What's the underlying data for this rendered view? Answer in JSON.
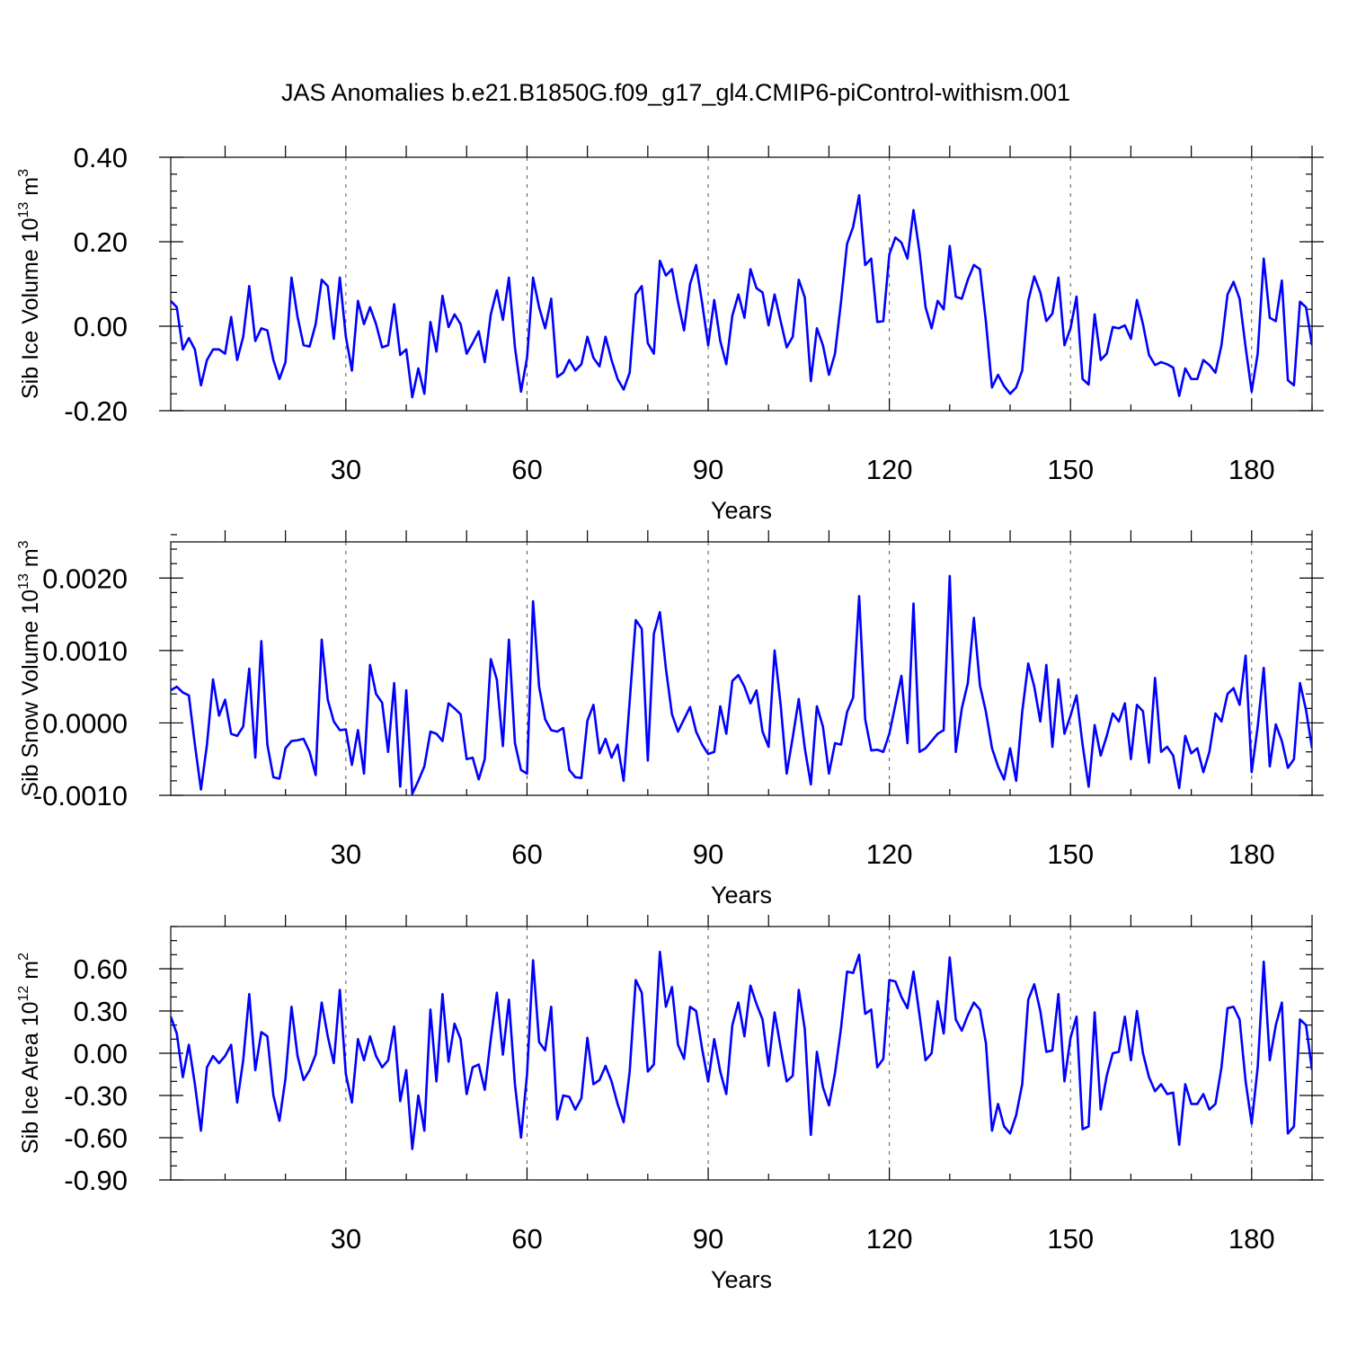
{
  "title": "JAS Anomalies b.e21.B1850G.f09_g17_gl4.CMIP6-piControl-withism.001",
  "colors": {
    "line": "#0000ff",
    "axis": "#000000",
    "grid": "#555555",
    "background": "#ffffff"
  },
  "chart_data": [
    {
      "type": "line",
      "ylabel": "Sib Ice Volume 10",
      "ylabel_exp": "13",
      "ylabel_unit": " m",
      "ylabel_unit_exp": "3",
      "xlabel": "Years",
      "xlim": [
        1,
        190
      ],
      "ylim": [
        -0.2,
        0.4
      ],
      "yticks": [
        -0.2,
        0.0,
        0.2,
        0.4
      ],
      "ytick_labels": [
        "-0.20",
        "0.00",
        "0.20",
        "0.40"
      ],
      "yminor": 0.04,
      "xticks": [
        30,
        60,
        90,
        120,
        150,
        180
      ],
      "xtick_labels": [
        "30",
        "60",
        "90",
        "120",
        "150",
        "180"
      ],
      "grid_x": [
        30,
        60,
        90,
        120,
        150,
        180
      ],
      "series": [
        {
          "name": "Sib Ice Volume",
          "x_start": 1,
          "values": [
            0.06,
            0.045,
            -0.055,
            -0.028,
            -0.055,
            -0.14,
            -0.08,
            -0.055,
            -0.055,
            -0.065,
            0.022,
            -0.08,
            -0.025,
            0.095,
            -0.035,
            -0.005,
            -0.01,
            -0.08,
            -0.125,
            -0.085,
            0.115,
            0.022,
            -0.045,
            -0.048,
            0.005,
            0.11,
            0.095,
            -0.03,
            0.115,
            -0.025,
            -0.105,
            0.06,
            0.005,
            0.045,
            0.005,
            -0.05,
            -0.045,
            0.052,
            -0.068,
            -0.055,
            -0.168,
            -0.1,
            -0.16,
            0.01,
            -0.06,
            0.072,
            -0.002,
            0.028,
            0.005,
            -0.065,
            -0.04,
            -0.012,
            -0.085,
            0.028,
            0.085,
            0.015,
            0.115,
            -0.05,
            -0.155,
            -0.075,
            0.115,
            0.045,
            -0.005,
            0.065,
            -0.12,
            -0.11,
            -0.08,
            -0.105,
            -0.09,
            -0.025,
            -0.075,
            -0.095,
            -0.025,
            -0.08,
            -0.125,
            -0.15,
            -0.11,
            0.075,
            0.095,
            -0.04,
            -0.065,
            0.155,
            0.12,
            0.135,
            0.058,
            -0.01,
            0.1,
            0.145,
            0.055,
            -0.045,
            0.062,
            -0.035,
            -0.09,
            0.025,
            0.075,
            0.02,
            0.135,
            0.09,
            0.08,
            0.002,
            0.075,
            0.012,
            -0.05,
            -0.025,
            0.11,
            0.068,
            -0.13,
            -0.005,
            -0.045,
            -0.115,
            -0.065,
            0.058,
            0.195,
            0.235,
            0.31,
            0.145,
            0.16,
            0.01,
            0.012,
            0.17,
            0.21,
            0.198,
            0.16,
            0.275,
            0.175,
            0.045,
            -0.005,
            0.06,
            0.04,
            0.19,
            0.07,
            0.065,
            0.11,
            0.145,
            0.135,
            0.01,
            -0.145,
            -0.115,
            -0.142,
            -0.16,
            -0.145,
            -0.105,
            0.06,
            0.118,
            0.08,
            0.012,
            0.03,
            0.115,
            -0.045,
            -0.005,
            0.07,
            -0.125,
            -0.138,
            0.028,
            -0.08,
            -0.065,
            -0.002,
            -0.005,
            0.002,
            -0.03,
            0.062,
            0.005,
            -0.068,
            -0.092,
            -0.085,
            -0.09,
            -0.098,
            -0.165,
            -0.1,
            -0.125,
            -0.125,
            -0.08,
            -0.092,
            -0.11,
            -0.045,
            0.075,
            0.105,
            0.065,
            -0.05,
            -0.155,
            -0.065,
            0.16,
            0.02,
            0.012,
            0.108,
            -0.128,
            -0.14,
            0.058,
            0.045,
            -0.045
          ]
        }
      ]
    },
    {
      "type": "line",
      "ylabel": "Sib Snow Volume 10",
      "ylabel_exp": "13",
      "ylabel_unit": " m",
      "ylabel_unit_exp": "3",
      "xlabel": "Years",
      "xlim": [
        1,
        190
      ],
      "ylim": [
        -0.001,
        0.0025
      ],
      "yticks": [
        -0.001,
        0.0,
        0.001,
        0.002
      ],
      "ytick_labels": [
        "-0.0010",
        "0.0000",
        "0.0010",
        "0.0020"
      ],
      "yminor": 0.0002,
      "xticks": [
        30,
        60,
        90,
        120,
        150,
        180
      ],
      "xtick_labels": [
        "30",
        "60",
        "90",
        "120",
        "150",
        "180"
      ],
      "grid_x": [
        30,
        60,
        90,
        120,
        150,
        180
      ],
      "series": [
        {
          "name": "Sib Snow Volume",
          "x_start": 1,
          "values": [
            0.00045,
            0.0005,
            0.00042,
            0.00038,
            -0.0003,
            -0.00092,
            -0.0003,
            0.0006,
            0.0001,
            0.00032,
            -0.00015,
            -0.00018,
            -5e-05,
            0.00075,
            -0.00048,
            0.00113,
            -0.0003,
            -0.00075,
            -0.00077,
            -0.00035,
            -0.00025,
            -0.00024,
            -0.00022,
            -0.0004,
            -0.00072,
            0.00115,
            0.00032,
            2e-05,
            -0.0001,
            -9e-05,
            -0.00058,
            -0.0001,
            -0.0007,
            0.0008,
            0.0004,
            0.00028,
            -0.0004,
            0.00055,
            -0.00088,
            0.00045,
            -0.00098,
            -0.0008,
            -0.0006,
            -0.00012,
            -0.00015,
            -0.00025,
            0.00027,
            0.0002,
            0.00012,
            -0.0005,
            -0.00048,
            -0.00078,
            -0.0005,
            0.00088,
            0.0006,
            -0.00032,
            0.00115,
            -0.00028,
            -0.00065,
            -0.0007,
            0.00168,
            0.0005,
            5e-05,
            -0.0001,
            -0.00012,
            -7e-05,
            -0.00065,
            -0.00075,
            -0.00076,
            3e-05,
            0.00025,
            -0.00042,
            -0.00022,
            -0.00048,
            -0.0003,
            -0.0008,
            0.0003,
            0.00142,
            0.0013,
            -0.00052,
            0.00123,
            0.00153,
            0.00075,
            0.00012,
            -0.00012,
            5e-05,
            0.00022,
            -0.00012,
            -0.0003,
            -0.00043,
            -0.0004,
            0.00023,
            -0.00015,
            0.00058,
            0.00066,
            0.0005,
            0.00027,
            0.00045,
            -0.00012,
            -0.00033,
            0.001,
            0.00025,
            -0.0007,
            -0.0002,
            0.00033,
            -0.00035,
            -0.00085,
            0.00023,
            -5e-05,
            -0.0007,
            -0.00028,
            -0.0003,
            0.00015,
            0.00035,
            0.00175,
            5e-05,
            -0.00038,
            -0.00037,
            -0.0004,
            -0.00015,
            0.00025,
            0.00065,
            -0.00028,
            0.00165,
            -0.0004,
            -0.00035,
            -0.00025,
            -0.00015,
            -0.0001,
            0.00203,
            -0.0004,
            0.0002,
            0.00055,
            0.00145,
            0.00052,
            0.00015,
            -0.00035,
            -0.0006,
            -0.00078,
            -0.00035,
            -0.0008,
            0.00015,
            0.00082,
            0.0005,
            2e-05,
            0.0008,
            -0.00033,
            0.0006,
            -0.00015,
            0.0001,
            0.00038,
            -0.0003,
            -0.00088,
            -3e-05,
            -0.00045,
            -0.00018,
            0.00013,
            2e-05,
            0.00027,
            -0.0005,
            0.00025,
            0.00016,
            -0.00055,
            0.00062,
            -0.0004,
            -0.00033,
            -0.00045,
            -0.0009,
            -0.00018,
            -0.00042,
            -0.00035,
            -0.00068,
            -0.0004,
            0.00013,
            2e-05,
            0.0004,
            0.00048,
            0.00025,
            0.00093,
            -0.00068,
            -5e-05,
            0.00076,
            -0.0006,
            -2e-05,
            -0.00025,
            -0.00062,
            -0.0005,
            0.00055,
            0.00018,
            -0.00035
          ]
        }
      ]
    },
    {
      "type": "line",
      "ylabel": "Sib Ice Area 10",
      "ylabel_exp": "12",
      "ylabel_unit": " m",
      "ylabel_unit_exp": "2",
      "xlabel": "Years",
      "xlim": [
        1,
        190
      ],
      "ylim": [
        -0.9,
        0.9
      ],
      "yticks": [
        -0.9,
        -0.6,
        -0.3,
        0.0,
        0.3,
        0.6
      ],
      "ytick_labels": [
        "-0.90",
        "-0.60",
        "-0.30",
        "0.00",
        "0.30",
        "0.60"
      ],
      "yminor": 0.1,
      "xticks": [
        30,
        60,
        90,
        120,
        150,
        180
      ],
      "xtick_labels": [
        "30",
        "60",
        "90",
        "120",
        "150",
        "180"
      ],
      "grid_x": [
        30,
        60,
        90,
        120,
        150,
        180
      ],
      "series": [
        {
          "name": "Sib Ice Area",
          "x_start": 1,
          "values": [
            0.26,
            0.14,
            -0.17,
            0.06,
            -0.22,
            -0.55,
            -0.1,
            -0.02,
            -0.07,
            -0.02,
            0.06,
            -0.35,
            -0.05,
            0.42,
            -0.12,
            0.15,
            0.12,
            -0.3,
            -0.48,
            -0.18,
            0.33,
            -0.02,
            -0.19,
            -0.12,
            -0.01,
            0.36,
            0.12,
            -0.07,
            0.45,
            -0.15,
            -0.35,
            0.1,
            -0.05,
            0.12,
            -0.02,
            -0.1,
            -0.05,
            0.19,
            -0.34,
            -0.12,
            -0.68,
            -0.3,
            -0.55,
            0.31,
            -0.2,
            0.42,
            -0.06,
            0.21,
            0.1,
            -0.29,
            -0.1,
            -0.08,
            -0.26,
            0.1,
            0.43,
            -0.01,
            0.38,
            -0.22,
            -0.6,
            -0.15,
            0.66,
            0.08,
            0.02,
            0.33,
            -0.47,
            -0.3,
            -0.31,
            -0.4,
            -0.32,
            0.11,
            -0.22,
            -0.19,
            -0.09,
            -0.2,
            -0.36,
            -0.49,
            -0.13,
            0.52,
            0.43,
            -0.13,
            -0.08,
            0.72,
            0.33,
            0.47,
            0.06,
            -0.04,
            0.33,
            0.3,
            0.03,
            -0.2,
            0.1,
            -0.13,
            -0.29,
            0.2,
            0.36,
            0.12,
            0.48,
            0.35,
            0.24,
            -0.09,
            0.29,
            0.04,
            -0.2,
            -0.16,
            0.45,
            0.17,
            -0.58,
            0.01,
            -0.24,
            -0.37,
            -0.14,
            0.18,
            0.58,
            0.57,
            0.7,
            0.28,
            0.31,
            -0.1,
            -0.04,
            0.52,
            0.51,
            0.4,
            0.32,
            0.58,
            0.27,
            -0.05,
            0.0,
            0.37,
            0.14,
            0.68,
            0.24,
            0.16,
            0.27,
            0.36,
            0.31,
            0.07,
            -0.55,
            -0.36,
            -0.52,
            -0.57,
            -0.44,
            -0.22,
            0.38,
            0.49,
            0.3,
            0.01,
            0.02,
            0.42,
            -0.2,
            0.11,
            0.26,
            -0.54,
            -0.52,
            0.29,
            -0.4,
            -0.16,
            0.0,
            0.01,
            0.26,
            -0.05,
            0.3,
            0.0,
            -0.17,
            -0.27,
            -0.22,
            -0.29,
            -0.28,
            -0.65,
            -0.22,
            -0.36,
            -0.36,
            -0.29,
            -0.4,
            -0.36,
            -0.1,
            0.32,
            0.33,
            0.24,
            -0.2,
            -0.5,
            -0.1,
            0.65,
            -0.05,
            0.2,
            0.36,
            -0.57,
            -0.52,
            0.24,
            0.2,
            -0.12
          ]
        }
      ]
    }
  ]
}
